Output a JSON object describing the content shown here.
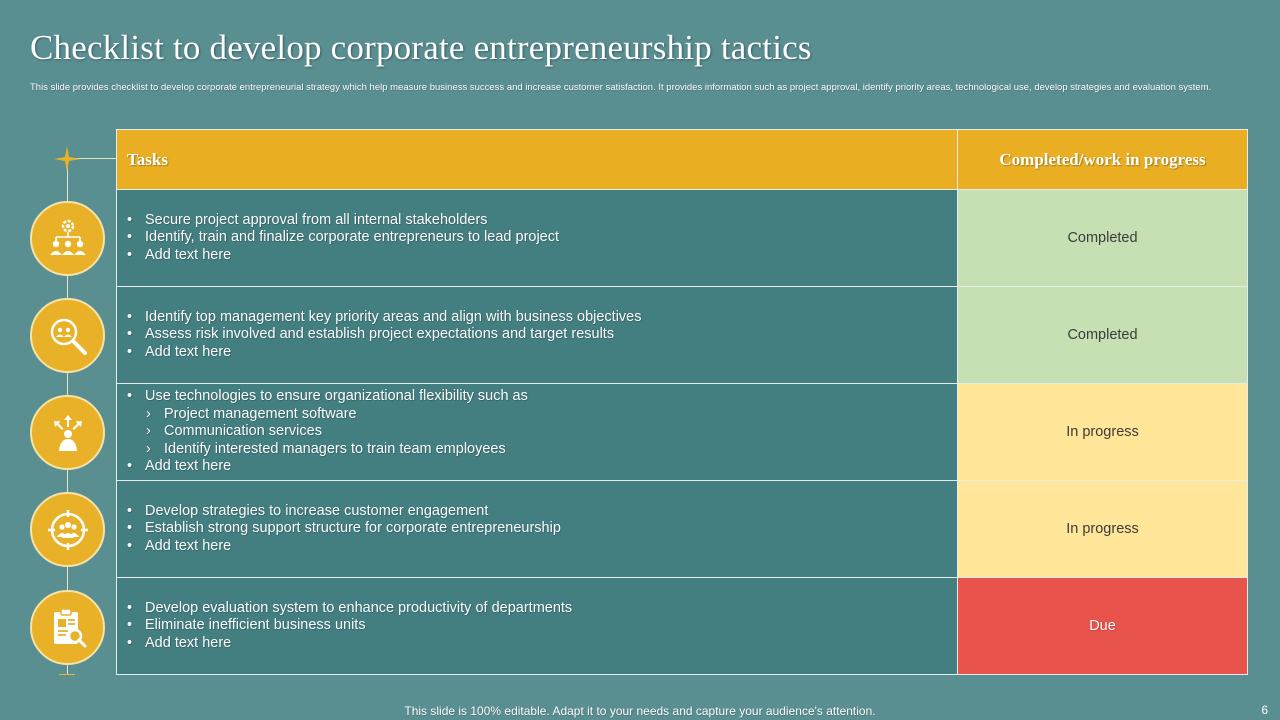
{
  "slide": {
    "title": "Checklist to develop corporate entrepreneurship tactics",
    "subtitle": "This slide provides checklist to develop corporate entrepreneurial strategy which help measure business success and increase customer satisfaction. It provides information such as project approval, identify priority areas, technological use, develop strategies and evaluation system.",
    "footer": "This slide is 100% editable. Adapt it to your needs and capture your audience's attention.",
    "page_number": "6"
  },
  "table": {
    "headers": {
      "tasks": "Tasks",
      "status": "Completed/work in progress"
    },
    "rows": [
      {
        "icon": "team-gear-icon",
        "items": [
          {
            "type": "bullet",
            "text": "Secure project approval from all internal stakeholders"
          },
          {
            "type": "bullet",
            "text": "Identify, train and finalize corporate entrepreneurs to lead project"
          },
          {
            "type": "bullet",
            "text": "Add text here"
          }
        ],
        "status": "Completed"
      },
      {
        "icon": "magnifier-people-icon",
        "items": [
          {
            "type": "bullet",
            "text": "Identify top management key priority areas and align with business objectives"
          },
          {
            "type": "bullet",
            "text": "Assess risk involved and establish project expectations and target results"
          },
          {
            "type": "bullet",
            "text": "Add text here"
          }
        ],
        "status": "Completed"
      },
      {
        "icon": "person-arrows-icon",
        "items": [
          {
            "type": "bullet",
            "text": "Use technologies to ensure organizational flexibility such as"
          },
          {
            "type": "sub",
            "text": "Project management software"
          },
          {
            "type": "sub",
            "text": "Communication services"
          },
          {
            "type": "sub",
            "text": "Identify interested managers to train team employees"
          },
          {
            "type": "bullet",
            "text": "Add text here"
          }
        ],
        "status": "In progress"
      },
      {
        "icon": "target-group-icon",
        "items": [
          {
            "type": "bullet",
            "text": "Develop strategies to increase customer engagement"
          },
          {
            "type": "bullet",
            "text": "Establish strong support structure for corporate entrepreneurship"
          },
          {
            "type": "bullet",
            "text": "Add text here"
          }
        ],
        "status": "In progress"
      },
      {
        "icon": "clipboard-search-icon",
        "items": [
          {
            "type": "bullet",
            "text": "Develop evaluation system to enhance productivity of departments"
          },
          {
            "type": "bullet",
            "text": "Eliminate inefficient business units"
          },
          {
            "type": "bullet",
            "text": "Add text here"
          }
        ],
        "status": "Due"
      }
    ]
  },
  "colors": {
    "background": "#5a8f92",
    "accent": "#e9ae22",
    "task_cell": "#437e80",
    "completed": "#c6e0b4",
    "in_progress": "#ffe699",
    "due": "#e8534b"
  }
}
